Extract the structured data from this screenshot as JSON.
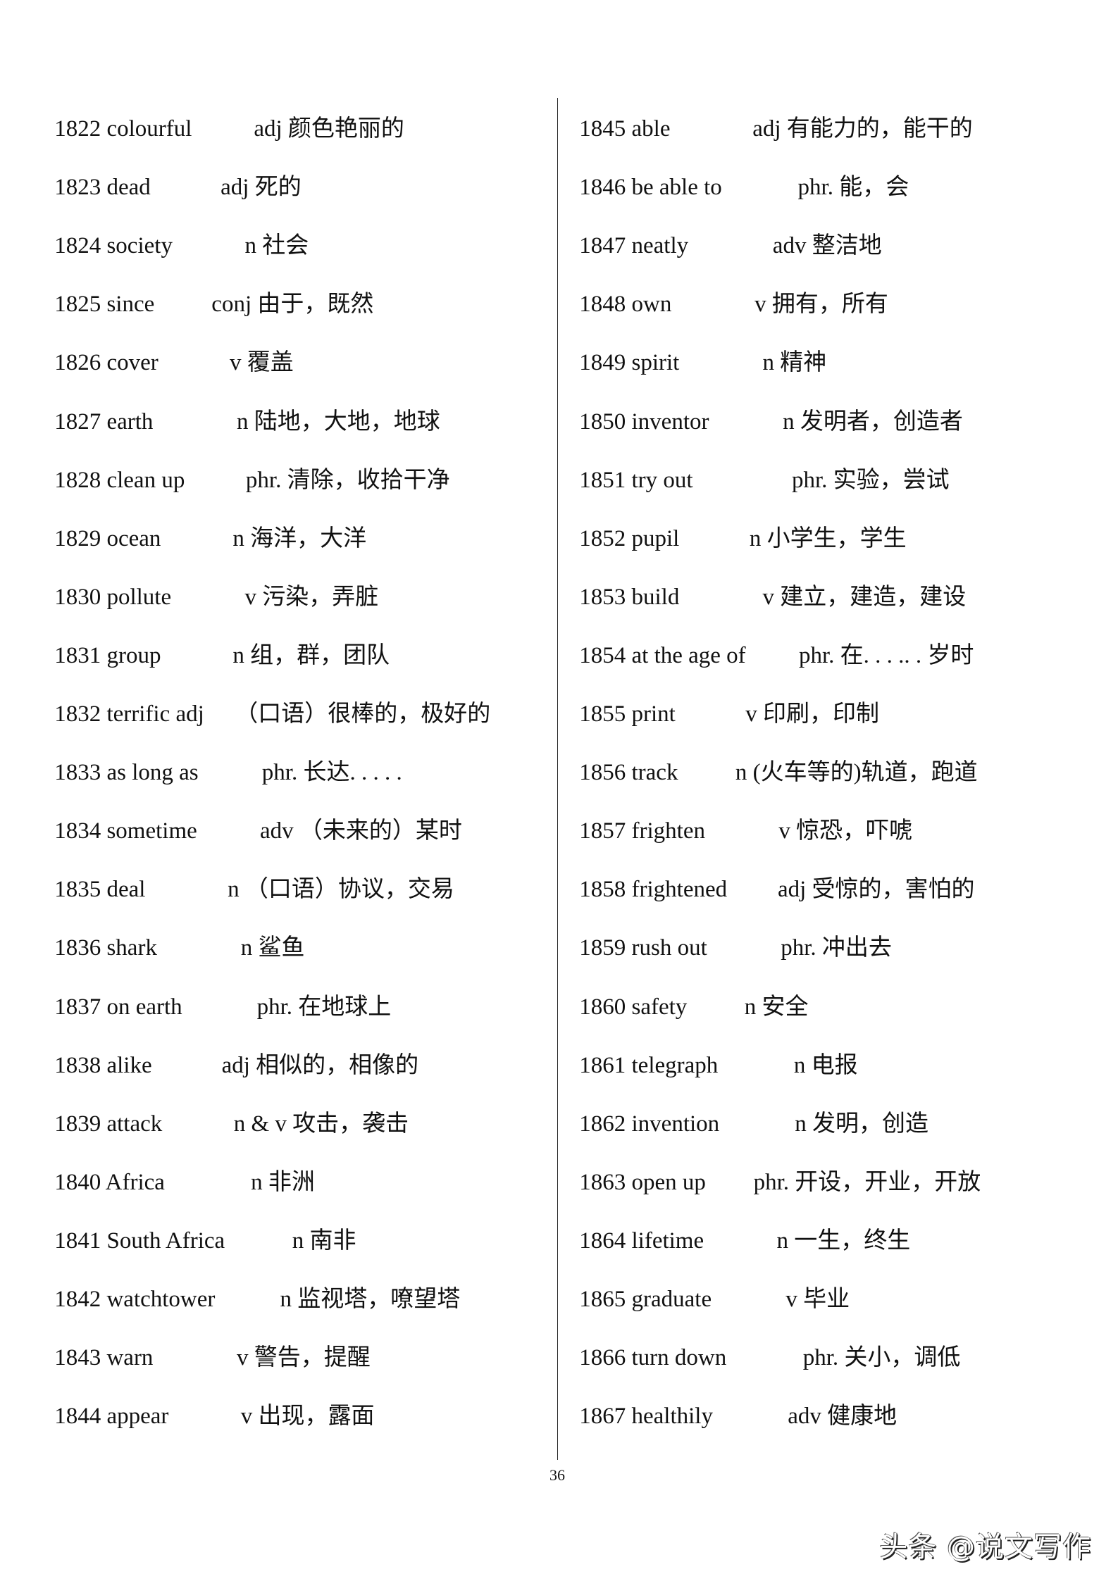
{
  "left_column": [
    {
      "no": "1822",
      "word": "colourful",
      "def": "adj 颜色艳丽的"
    },
    {
      "no": "1823",
      "word": "dead",
      "def": "adj 死的"
    },
    {
      "no": "1824",
      "word": "society",
      "def": "n 社会"
    },
    {
      "no": "1825",
      "word": "since",
      "def": "conj 由于，既然"
    },
    {
      "no": "1826",
      "word": "cover",
      "def": "v 覆盖"
    },
    {
      "no": "1827",
      "word": "earth",
      "def": "n 陆地，大地，地球"
    },
    {
      "no": "1828",
      "word": "clean up",
      "def": "phr. 清除，收拾干净"
    },
    {
      "no": "1829",
      "word": "ocean",
      "def": "n 海洋，大洋"
    },
    {
      "no": "1830",
      "word": "pollute",
      "def": "v 污染，弄脏"
    },
    {
      "no": "1831",
      "word": "group",
      "def": "n 组，群，团队"
    },
    {
      "no": "1832",
      "word": "terrific adj",
      "def": "（口语）很棒的，极好的"
    },
    {
      "no": "1833",
      "word": "as long as",
      "def": "phr. 长达. . . . ."
    },
    {
      "no": "1834",
      "word": "sometime",
      "def": "adv （未来的）某时"
    },
    {
      "no": "1835",
      "word": "deal",
      "def": "n （口语）协议，交易"
    },
    {
      "no": "1836",
      "word": "shark",
      "def": "n 鲨鱼"
    },
    {
      "no": "1837",
      "word": "on earth",
      "def": "phr. 在地球上"
    },
    {
      "no": "1838",
      "word": "alike",
      "def": "adj 相似的，相像的"
    },
    {
      "no": "1839",
      "word": "attack",
      "def": "n & v 攻击，袭击"
    },
    {
      "no": "1840",
      "word": "Africa",
      "def": "n 非洲"
    },
    {
      "no": "1841",
      "word": "South Africa",
      "def": "n 南非"
    },
    {
      "no": "1842",
      "word": "watchtower",
      "def": "n 监视塔，嘹望塔"
    },
    {
      "no": "1843",
      "word": "warn",
      "def": "v 警告，提醒"
    },
    {
      "no": "1844",
      "word": "appear",
      "def": "v 出现，露面"
    }
  ],
  "right_column": [
    {
      "no": "1845",
      "word": "able",
      "def": "adj 有能力的，能干的"
    },
    {
      "no": "1846",
      "word": "be able to",
      "def": "phr. 能，会"
    },
    {
      "no": "1847",
      "word": "neatly",
      "def": "adv 整洁地"
    },
    {
      "no": "1848",
      "word": "own",
      "def": "v 拥有，所有"
    },
    {
      "no": "1849",
      "word": "spirit",
      "def": "n 精神"
    },
    {
      "no": "1850",
      "word": "inventor",
      "def": "n 发明者，创造者"
    },
    {
      "no": "1851",
      "word": "try out",
      "def": "phr. 实验，尝试"
    },
    {
      "no": "1852",
      "word": "pupil",
      "def": "n 小学生，学生"
    },
    {
      "no": "1853",
      "word": "build",
      "def": "v 建立，建造，建设"
    },
    {
      "no": "1854",
      "word": "at the age of",
      "def": "phr. 在. . . .. . 岁时"
    },
    {
      "no": "1855",
      "word": "print",
      "def": "v 印刷，印制"
    },
    {
      "no": "1856",
      "word": "track",
      "def": "n (火车等的)轨道，跑道"
    },
    {
      "no": "1857",
      "word": "frighten",
      "def": "v 惊恐，吓唬"
    },
    {
      "no": "1858",
      "word": "frightened",
      "def": "adj 受惊的，害怕的"
    },
    {
      "no": "1859",
      "word": "rush out",
      "def": "phr. 冲出去"
    },
    {
      "no": "1860",
      "word": "safety",
      "def": "n 安全"
    },
    {
      "no": "1861",
      "word": "telegraph",
      "def": "n 电报"
    },
    {
      "no": "1862",
      "word": "invention",
      "def": "n 发明，创造"
    },
    {
      "no": "1863",
      "word": "open up",
      "def": "phr. 开设，开业，开放"
    },
    {
      "no": "1864",
      "word": "lifetime",
      "def": "n 一生，终生"
    },
    {
      "no": "1865",
      "word": "graduate",
      "def": "v 毕业"
    },
    {
      "no": "1866",
      "word": "turn down",
      "def": "phr. 关小，调低"
    },
    {
      "no": "1867",
      "word": "healthily",
      "def": "adv 健康地"
    }
  ],
  "page_number": "36",
  "watermark": "头条 @说文写作"
}
